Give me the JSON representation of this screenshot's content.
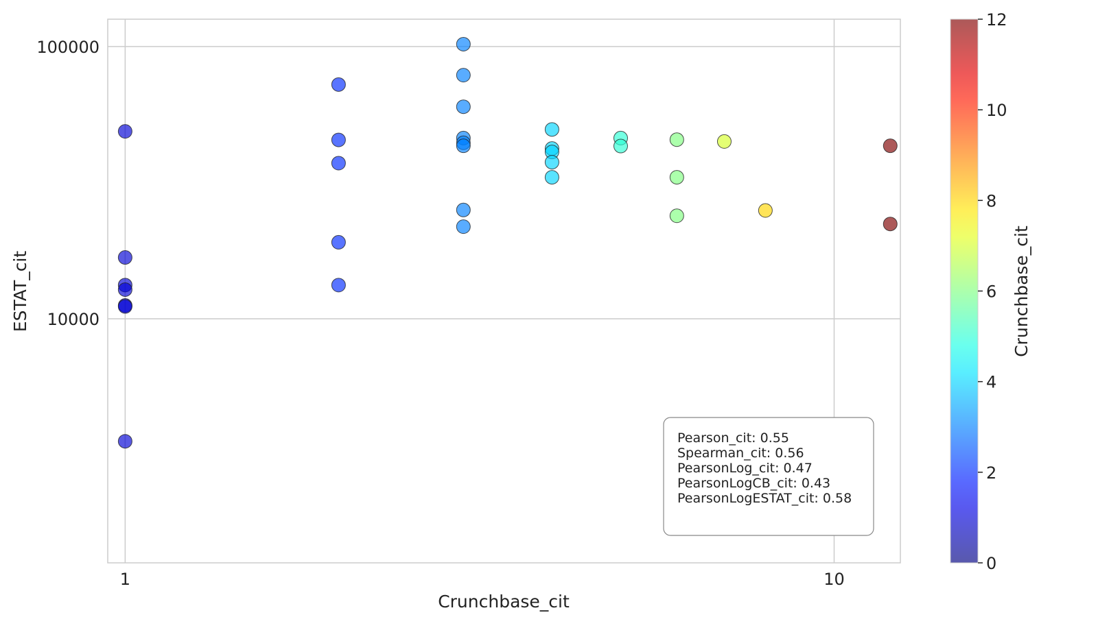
{
  "chart_data": {
    "type": "scatter",
    "title": "",
    "xlabel": "Crunchbase_cit",
    "ylabel": "ESTAT_cit",
    "xscale": "log",
    "yscale": "log",
    "xlim": [
      0.945,
      12.4
    ],
    "ylim": [
      1270,
      126000
    ],
    "xticks": [
      1,
      10
    ],
    "xtick_labels": [
      "1",
      "10"
    ],
    "yticks": [
      10000,
      100000
    ],
    "ytick_labels": [
      "10000",
      "100000"
    ],
    "grid": true,
    "colormap": "jet",
    "marker_alpha": 0.65,
    "colorbar": {
      "label": "Crunchbase_cit",
      "range": [
        0,
        12
      ],
      "ticks": [
        0,
        2,
        4,
        6,
        8,
        10,
        12
      ],
      "tick_labels": [
        "0",
        "2",
        "4",
        "6",
        "8",
        "10",
        "12"
      ]
    },
    "points": [
      {
        "x": 1,
        "y": 48800
      },
      {
        "x": 1,
        "y": 16800
      },
      {
        "x": 1,
        "y": 13300
      },
      {
        "x": 1,
        "y": 12800
      },
      {
        "x": 1,
        "y": 11200
      },
      {
        "x": 1,
        "y": 11100
      },
      {
        "x": 1,
        "y": 3550
      },
      {
        "x": 2,
        "y": 72500
      },
      {
        "x": 2,
        "y": 45400
      },
      {
        "x": 2,
        "y": 37300
      },
      {
        "x": 2,
        "y": 19100
      },
      {
        "x": 2,
        "y": 13300
      },
      {
        "x": 3,
        "y": 102000
      },
      {
        "x": 3,
        "y": 78500
      },
      {
        "x": 3,
        "y": 60100
      },
      {
        "x": 3,
        "y": 46100
      },
      {
        "x": 3,
        "y": 44300
      },
      {
        "x": 3,
        "y": 43200
      },
      {
        "x": 3,
        "y": 25100
      },
      {
        "x": 3,
        "y": 21800
      },
      {
        "x": 4,
        "y": 49600
      },
      {
        "x": 4,
        "y": 42200
      },
      {
        "x": 4,
        "y": 41000
      },
      {
        "x": 4,
        "y": 37600
      },
      {
        "x": 4,
        "y": 33100
      },
      {
        "x": 5,
        "y": 46100
      },
      {
        "x": 5,
        "y": 43100
      },
      {
        "x": 6,
        "y": 45500
      },
      {
        "x": 6,
        "y": 33100
      },
      {
        "x": 6,
        "y": 23900
      },
      {
        "x": 7,
        "y": 44800
      },
      {
        "x": 8,
        "y": 25000
      },
      {
        "x": 12,
        "y": 43200
      },
      {
        "x": 12,
        "y": 22300
      }
    ]
  },
  "stats_box": {
    "lines": [
      "Pearson_cit: 0.55",
      "Spearman_cit: 0.56",
      "PearsonLog_cit: 0.47",
      "PearsonLogCB_cit: 0.43",
      "PearsonLogESTAT_cit: 0.58"
    ]
  }
}
